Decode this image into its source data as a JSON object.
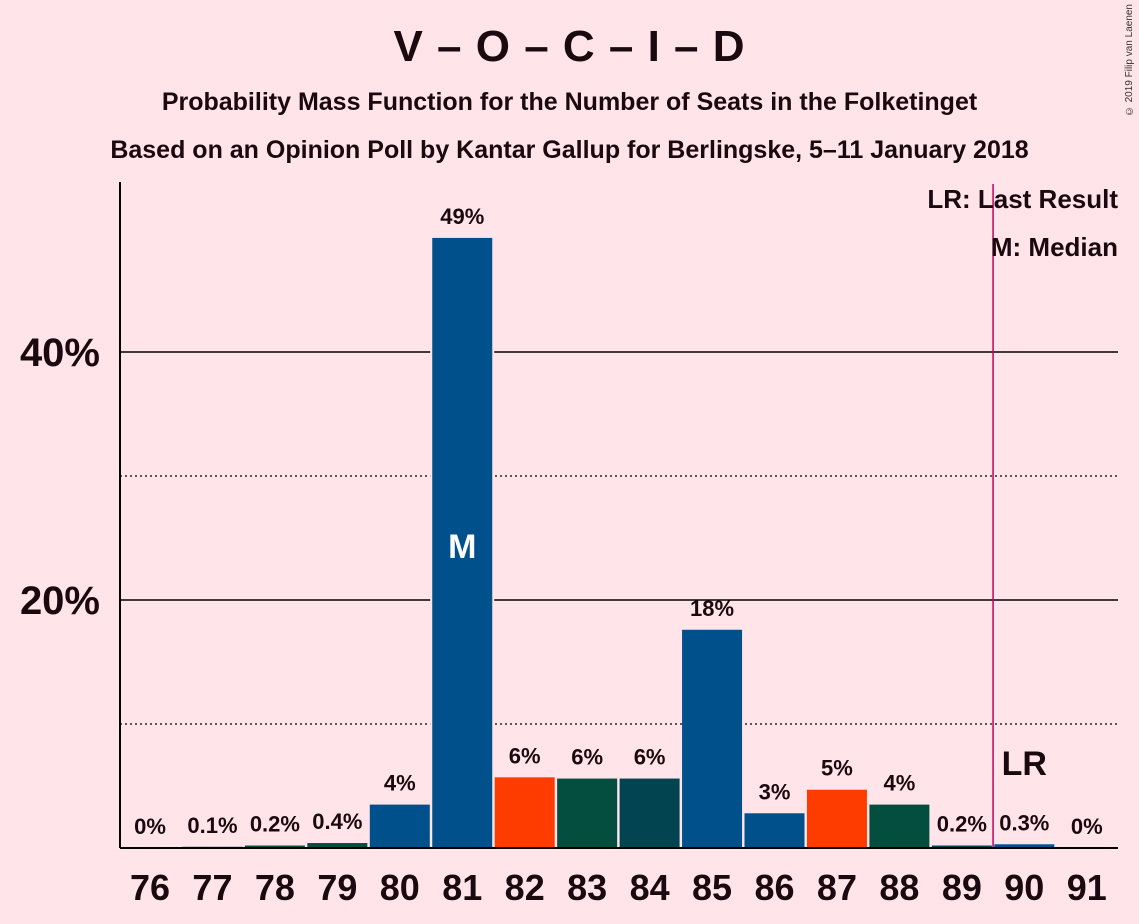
{
  "chart_data": {
    "type": "bar",
    "title": "V – O – C – I – D",
    "subtitle": "Probability Mass Function for the Number of Seats in the Folketinget",
    "subtitle2": "Based on an Opinion Poll by Kantar Gallup for Berlingske, 5–11 January 2018",
    "copyright": "© 2019 Filip van Laenen",
    "legend": {
      "lr": "LR: Last Result",
      "m": "M: Median"
    },
    "categories": [
      "76",
      "77",
      "78",
      "79",
      "80",
      "81",
      "82",
      "83",
      "84",
      "85",
      "86",
      "87",
      "88",
      "89",
      "90",
      "91"
    ],
    "values": [
      0,
      0.1,
      0.2,
      0.4,
      3.5,
      49.2,
      5.7,
      5.6,
      5.6,
      17.6,
      2.8,
      4.7,
      3.5,
      0.2,
      0.3,
      0
    ],
    "labels": [
      "0%",
      "0.1%",
      "0.2%",
      "0.4%",
      "4%",
      "49%",
      "6%",
      "6%",
      "6%",
      "18%",
      "3%",
      "5%",
      "4%",
      "0.2%",
      "0.3%",
      "0%"
    ],
    "bar_colors": [
      "#00508C",
      "#00508C",
      "#034E3F",
      "#034E3F",
      "#00508C",
      "#00508C",
      "#FF3C00",
      "#034E3F",
      "#02444F",
      "#00508C",
      "#00508C",
      "#FF3C00",
      "#034E3F",
      "#02444F",
      "#00508C",
      "#00508C"
    ],
    "median_seat": "81",
    "median_label": "M",
    "last_result_seat": "90",
    "last_result_label": "LR",
    "yticks": [
      20,
      40
    ],
    "ytick_labels": [
      "20%",
      "40%"
    ],
    "ylim": [
      0,
      53.8
    ],
    "grid": {
      "solid": [
        20,
        40
      ],
      "dotted": [
        10,
        30
      ]
    },
    "colors": {
      "background": "#FFE5EA",
      "axis": "#000000",
      "lr_line": "#C00060"
    }
  }
}
